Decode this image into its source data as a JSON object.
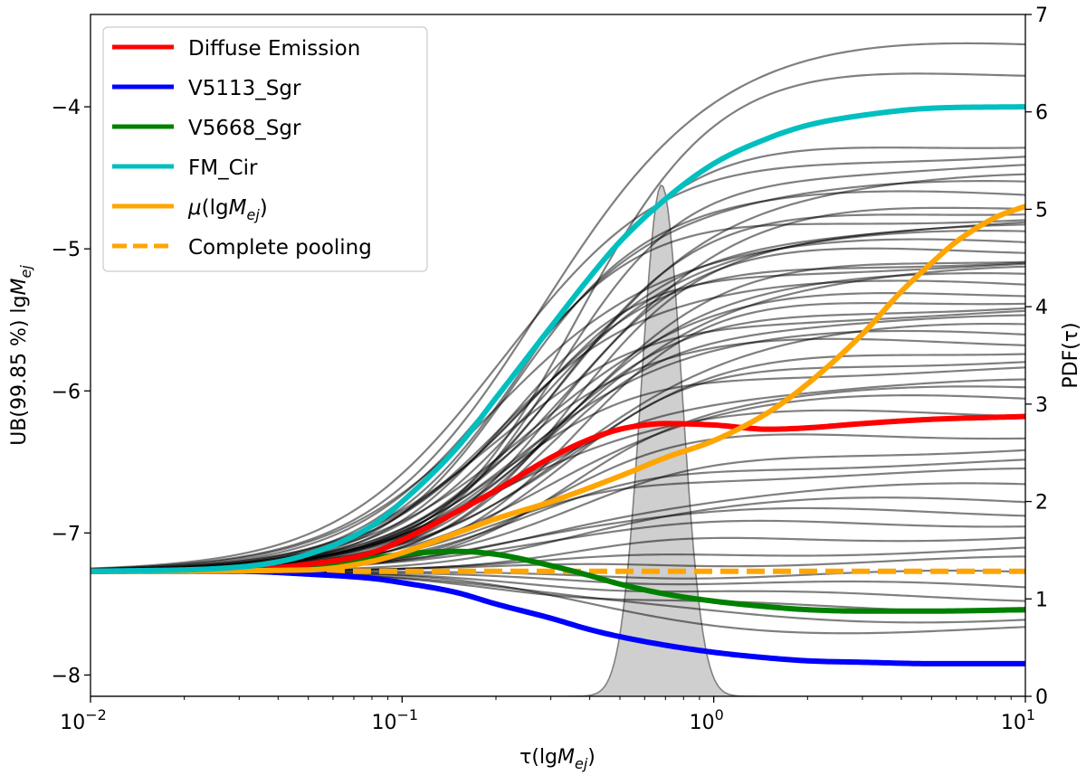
{
  "chart_data": {
    "type": "line",
    "x_scale": "log",
    "xlim": [
      0.01,
      10
    ],
    "ylim_left": [
      -8.15,
      -3.35
    ],
    "ylim_right": [
      0,
      7
    ],
    "xlabel": "τ(lgM_ej)",
    "ylabel_left": "UB(99.85 %) lgM_ej",
    "ylabel_right": "PDF(τ)",
    "x_ticks": [
      {
        "value": 0.01,
        "base": "10",
        "exp": "−2"
      },
      {
        "value": 0.1,
        "base": "10",
        "exp": "−1"
      },
      {
        "value": 1,
        "base": "10",
        "exp": "0"
      },
      {
        "value": 10,
        "base": "10",
        "exp": "1"
      }
    ],
    "y_left_ticks": [
      {
        "value": -8,
        "label": "−8"
      },
      {
        "value": -7,
        "label": "−7"
      },
      {
        "value": -6,
        "label": "−6"
      },
      {
        "value": -5,
        "label": "−5"
      },
      {
        "value": -4,
        "label": "−4"
      }
    ],
    "y_right_ticks": [
      {
        "value": 0,
        "label": "0"
      },
      {
        "value": 1,
        "label": "1"
      },
      {
        "value": 2,
        "label": "2"
      },
      {
        "value": 3,
        "label": "3"
      },
      {
        "value": 4,
        "label": "4"
      },
      {
        "value": 5,
        "label": "5"
      },
      {
        "value": 6,
        "label": "6"
      },
      {
        "value": 7,
        "label": "7"
      }
    ],
    "start_value": -7.27,
    "pooling_value": -7.27,
    "background_curve_plateaus": [
      -3.55,
      -3.75,
      -4.25,
      -4.33,
      -4.42,
      -4.5,
      -4.55,
      -4.62,
      -4.68,
      -4.72,
      -4.78,
      -4.82,
      -4.86,
      -4.9,
      -4.95,
      -5.0,
      -5.05,
      -5.08,
      -5.12,
      -5.15,
      -5.2,
      -5.25,
      -5.3,
      -5.35,
      -5.4,
      -5.45,
      -5.5,
      -5.55,
      -5.6,
      -5.65,
      -5.7,
      -5.78,
      -5.85,
      -5.95,
      -6.0,
      -6.05,
      -6.15,
      -6.3,
      -6.4,
      -6.5,
      -6.58,
      -6.68,
      -6.78,
      -6.85,
      -6.92,
      -7.02,
      -7.12,
      -7.2,
      -7.3,
      -7.38,
      -7.45,
      -7.52,
      -7.6,
      -7.68
    ],
    "series": [
      {
        "name": "Diffuse Emission",
        "color": "#ff0000",
        "style": "solid",
        "x": [
          0.01,
          0.03,
          0.05,
          0.08,
          0.1,
          0.15,
          0.2,
          0.3,
          0.4,
          0.5,
          0.6,
          0.7,
          1.0,
          1.5,
          2,
          3,
          5,
          10
        ],
        "values": [
          -7.27,
          -7.26,
          -7.22,
          -7.14,
          -7.05,
          -6.85,
          -6.7,
          -6.47,
          -6.34,
          -6.27,
          -6.24,
          -6.23,
          -6.24,
          -6.27,
          -6.26,
          -6.23,
          -6.2,
          -6.18
        ]
      },
      {
        "name": "V5113_Sgr",
        "color": "#0000ff",
        "style": "solid",
        "x": [
          0.01,
          0.03,
          0.05,
          0.08,
          0.1,
          0.15,
          0.2,
          0.3,
          0.4,
          0.5,
          0.7,
          1.0,
          1.5,
          2,
          3,
          5,
          10
        ],
        "values": [
          -7.27,
          -7.27,
          -7.29,
          -7.32,
          -7.35,
          -7.42,
          -7.5,
          -7.6,
          -7.68,
          -7.73,
          -7.79,
          -7.84,
          -7.88,
          -7.9,
          -7.91,
          -7.92,
          -7.92
        ]
      },
      {
        "name": "V5668_Sgr",
        "color": "#008000",
        "style": "solid",
        "x": [
          0.01,
          0.03,
          0.05,
          0.08,
          0.1,
          0.15,
          0.2,
          0.3,
          0.4,
          0.5,
          0.7,
          1.0,
          1.5,
          2,
          3,
          5,
          10
        ],
        "values": [
          -7.27,
          -7.26,
          -7.23,
          -7.18,
          -7.15,
          -7.13,
          -7.15,
          -7.23,
          -7.3,
          -7.36,
          -7.43,
          -7.48,
          -7.52,
          -7.54,
          -7.55,
          -7.55,
          -7.54
        ]
      },
      {
        "name": "FM_Cir",
        "color": "#00bfbf",
        "style": "solid",
        "x": [
          0.01,
          0.03,
          0.05,
          0.08,
          0.1,
          0.15,
          0.2,
          0.3,
          0.4,
          0.5,
          0.7,
          1.0,
          1.5,
          2,
          3,
          5,
          10
        ],
        "values": [
          -7.27,
          -7.24,
          -7.15,
          -6.95,
          -6.78,
          -6.4,
          -6.05,
          -5.55,
          -5.2,
          -4.95,
          -4.65,
          -4.4,
          -4.22,
          -4.13,
          -4.06,
          -4.01,
          -4.0
        ]
      },
      {
        "name": "μ(lgM_ej)",
        "color": "#ffa500",
        "style": "solid",
        "x": [
          0.01,
          0.05,
          0.08,
          0.1,
          0.15,
          0.2,
          0.3,
          0.5,
          0.7,
          1.0,
          1.5,
          2,
          3,
          4,
          5,
          6,
          8,
          10
        ],
        "values": [
          -7.27,
          -7.26,
          -7.2,
          -7.14,
          -7.0,
          -6.9,
          -6.78,
          -6.6,
          -6.47,
          -6.35,
          -6.15,
          -5.95,
          -5.6,
          -5.3,
          -5.1,
          -4.95,
          -4.78,
          -4.7
        ]
      },
      {
        "name": "Complete pooling",
        "color": "#ffa500",
        "style": "dashed",
        "x": [
          0.01,
          10
        ],
        "values": [
          -7.27,
          -7.27
        ]
      }
    ],
    "pdf": {
      "name": "PDF(τ)",
      "color": "#808080",
      "mode": 0.68,
      "peak": 5.25,
      "sigma_log10": 0.065
    }
  }
}
